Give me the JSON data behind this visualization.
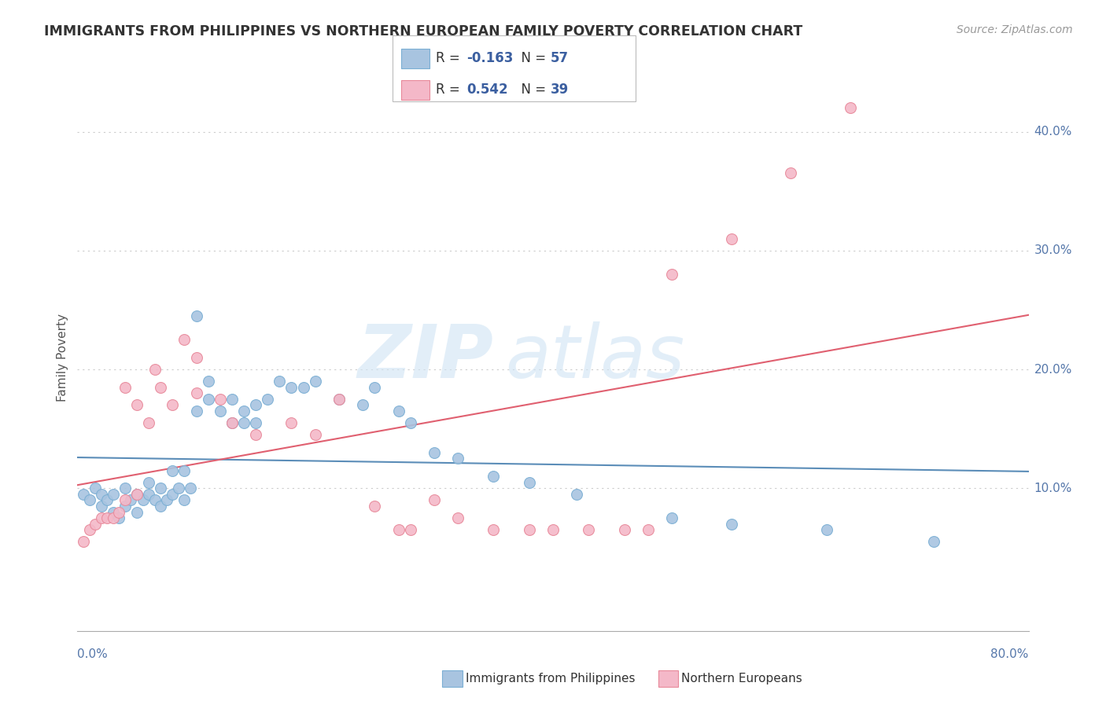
{
  "title": "IMMIGRANTS FROM PHILIPPINES VS NORTHERN EUROPEAN FAMILY POVERTY CORRELATION CHART",
  "source": "Source: ZipAtlas.com",
  "ylabel": "Family Poverty",
  "blue_color": "#A8C4E0",
  "blue_edge": "#7BAFD4",
  "pink_color": "#F4B8C8",
  "pink_edge": "#E8899A",
  "line_blue": "#5B8DB8",
  "line_pink": "#E06070",
  "watermark_zip_color": "#C8D8EC",
  "watermark_atlas_color": "#C8D8EC",
  "grid_color": "#CCCCCC",
  "title_color": "#333333",
  "source_color": "#999999",
  "tick_color": "#5577AA",
  "xlim": [
    0.0,
    0.8
  ],
  "ylim": [
    -0.02,
    0.44
  ],
  "blue_x": [
    0.005,
    0.01,
    0.015,
    0.02,
    0.02,
    0.025,
    0.03,
    0.03,
    0.035,
    0.04,
    0.04,
    0.045,
    0.05,
    0.05,
    0.055,
    0.06,
    0.06,
    0.065,
    0.07,
    0.07,
    0.075,
    0.08,
    0.08,
    0.085,
    0.09,
    0.09,
    0.095,
    0.1,
    0.1,
    0.11,
    0.11,
    0.12,
    0.13,
    0.13,
    0.14,
    0.14,
    0.15,
    0.15,
    0.16,
    0.17,
    0.18,
    0.19,
    0.2,
    0.22,
    0.24,
    0.25,
    0.27,
    0.28,
    0.3,
    0.32,
    0.35,
    0.38,
    0.42,
    0.5,
    0.55,
    0.63,
    0.72
  ],
  "blue_y": [
    0.095,
    0.09,
    0.1,
    0.085,
    0.095,
    0.09,
    0.08,
    0.095,
    0.075,
    0.1,
    0.085,
    0.09,
    0.095,
    0.08,
    0.09,
    0.105,
    0.095,
    0.09,
    0.1,
    0.085,
    0.09,
    0.115,
    0.095,
    0.1,
    0.115,
    0.09,
    0.1,
    0.245,
    0.165,
    0.19,
    0.175,
    0.165,
    0.175,
    0.155,
    0.165,
    0.155,
    0.17,
    0.155,
    0.175,
    0.19,
    0.185,
    0.185,
    0.19,
    0.175,
    0.17,
    0.185,
    0.165,
    0.155,
    0.13,
    0.125,
    0.11,
    0.105,
    0.095,
    0.075,
    0.07,
    0.065,
    0.055
  ],
  "pink_x": [
    0.005,
    0.01,
    0.015,
    0.02,
    0.025,
    0.03,
    0.035,
    0.04,
    0.04,
    0.05,
    0.05,
    0.06,
    0.065,
    0.07,
    0.08,
    0.09,
    0.1,
    0.1,
    0.12,
    0.13,
    0.15,
    0.18,
    0.2,
    0.22,
    0.25,
    0.27,
    0.28,
    0.3,
    0.32,
    0.35,
    0.38,
    0.4,
    0.43,
    0.46,
    0.48,
    0.5,
    0.55,
    0.6,
    0.65
  ],
  "pink_y": [
    0.055,
    0.065,
    0.07,
    0.075,
    0.075,
    0.075,
    0.08,
    0.185,
    0.09,
    0.17,
    0.095,
    0.155,
    0.2,
    0.185,
    0.17,
    0.225,
    0.18,
    0.21,
    0.175,
    0.155,
    0.145,
    0.155,
    0.145,
    0.175,
    0.085,
    0.065,
    0.065,
    0.09,
    0.075,
    0.065,
    0.065,
    0.065,
    0.065,
    0.065,
    0.065,
    0.28,
    0.31,
    0.365,
    0.42
  ]
}
